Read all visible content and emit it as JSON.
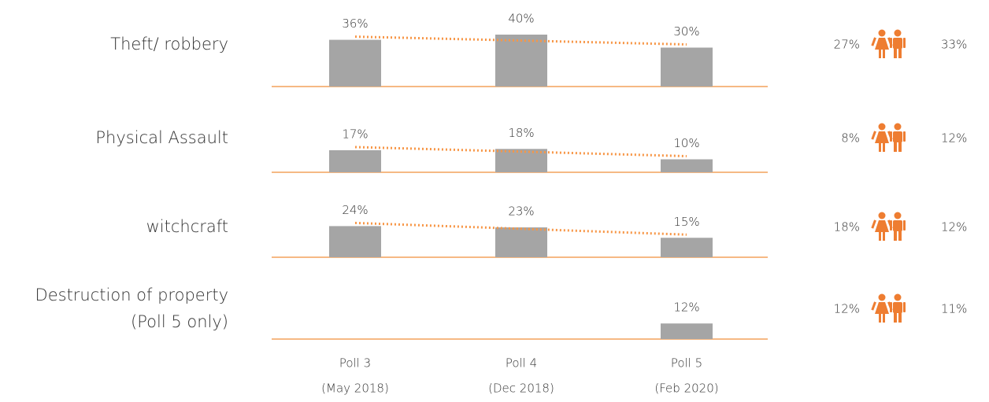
{
  "chart_data": {
    "type": "bar",
    "categories": [
      "Poll 3",
      "Poll 4",
      "Poll 5"
    ],
    "category_dates": [
      "(May 2018)",
      "(Dec 2018)",
      "(Feb 2020)"
    ],
    "ylim": [
      0,
      40
    ],
    "bar_color": "#a5a5a5",
    "trend_color": "#f79646",
    "axis_color": "#f4a25b",
    "icon_color": "#ee7d31",
    "series": [
      {
        "name": "Theft/ robbery",
        "values": [
          36,
          40,
          30
        ],
        "value_labels": [
          "36%",
          "40%",
          "30%"
        ],
        "gender_values": [
          27,
          33
        ],
        "gender_labels": [
          "27%",
          "33%"
        ]
      },
      {
        "name": "Physical Assault",
        "values": [
          17,
          18,
          10
        ],
        "value_labels": [
          "17%",
          "18%",
          "10%"
        ],
        "gender_values": [
          8,
          12
        ],
        "gender_labels": [
          "8%",
          "12%"
        ]
      },
      {
        "name": "witchcraft",
        "values": [
          24,
          23,
          15
        ],
        "value_labels": [
          "24%",
          "23%",
          "15%"
        ],
        "gender_values": [
          18,
          12
        ],
        "gender_labels": [
          "18%",
          "12%"
        ]
      },
      {
        "name": "Destruction of property",
        "name_note": "(Poll 5 only)",
        "values": [
          null,
          null,
          12
        ],
        "value_labels": [
          null,
          null,
          "12%"
        ],
        "gender_values": [
          12,
          11
        ],
        "gender_labels": [
          "12%",
          "11%"
        ]
      }
    ]
  }
}
